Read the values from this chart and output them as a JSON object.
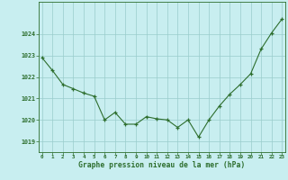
{
  "x": [
    0,
    1,
    2,
    3,
    4,
    5,
    6,
    7,
    8,
    9,
    10,
    11,
    12,
    13,
    14,
    15,
    16,
    17,
    18,
    19,
    20,
    21,
    22,
    23
  ],
  "y": [
    1022.9,
    1022.3,
    1021.65,
    1021.45,
    1021.25,
    1021.1,
    1020.0,
    1020.35,
    1019.8,
    1019.8,
    1020.15,
    1020.05,
    1020.0,
    1019.65,
    1020.0,
    1019.2,
    1020.0,
    1020.65,
    1021.2,
    1021.65,
    1022.15,
    1023.3,
    1024.05,
    1024.7
  ],
  "line_color": "#2d6e2d",
  "marker_color": "#2d6e2d",
  "bg_color": "#c8eef0",
  "grid_color": "#99cccc",
  "xlabel": "Graphe pression niveau de la mer (hPa)",
  "xlabel_color": "#2d6e2d",
  "tick_color": "#2d6e2d",
  "ylim": [
    1018.5,
    1025.5
  ],
  "yticks": [
    1019,
    1020,
    1021,
    1022,
    1023,
    1024
  ],
  "xticks": [
    0,
    1,
    2,
    3,
    4,
    5,
    6,
    7,
    8,
    9,
    10,
    11,
    12,
    13,
    14,
    15,
    16,
    17,
    18,
    19,
    20,
    21,
    22,
    23
  ],
  "xlim": [
    -0.3,
    23.3
  ]
}
